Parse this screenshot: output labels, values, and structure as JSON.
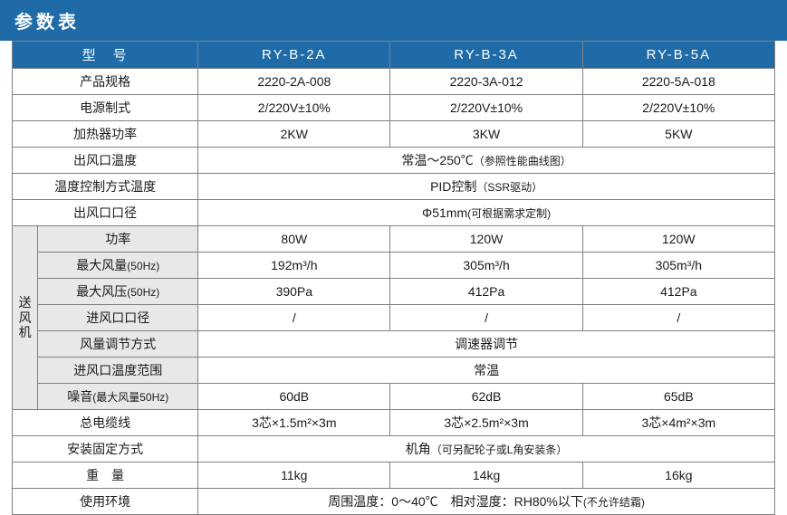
{
  "title": "参数表",
  "colors": {
    "header_bg": "#1e6ba8",
    "header_fg": "#ffffff",
    "border": "#808080",
    "row_white": "#ffffff",
    "row_gray": "#e8e8e8",
    "text": "#1a1a1a"
  },
  "header": {
    "model_label": "型　号",
    "models": [
      "RY-B-2A",
      "RY-B-3A",
      "RY-B-5A"
    ]
  },
  "rows": {
    "spec": {
      "label": "产品规格",
      "values": [
        "2220-2A-008",
        "2220-3A-012",
        "2220-5A-018"
      ]
    },
    "power_supply": {
      "label": "电源制式",
      "values": [
        "2/220V±10%",
        "2/220V±10%",
        "2/220V±10%"
      ]
    },
    "heater_power": {
      "label": "加热器功率",
      "values": [
        "2KW",
        "3KW",
        "5KW"
      ]
    },
    "outlet_temp": {
      "label": "出风口温度",
      "merged": "常温～250℃",
      "note": "（参照性能曲线图）"
    },
    "temp_control": {
      "label": "温度控制方式温度",
      "merged": "PID控制",
      "note": "（SSR驱动）"
    },
    "outlet_dia": {
      "label": "出风口口径",
      "merged": "Φ51mm",
      "note": "(可根据需求定制)"
    },
    "blower_group_label": "送风机",
    "blower": {
      "power": {
        "label": "功率",
        "values": [
          "80W",
          "120W",
          "120W"
        ]
      },
      "max_flow": {
        "label": "最大风量",
        "label_note": "(50Hz)",
        "values": [
          "192m³/h",
          "305m³/h",
          "305m³/h"
        ]
      },
      "max_pressure": {
        "label": "最大风压",
        "label_note": "(50Hz)",
        "values": [
          "390Pa",
          "412Pa",
          "412Pa"
        ]
      },
      "inlet_dia": {
        "label": "进风口口径",
        "values": [
          "/",
          "/",
          "/"
        ]
      },
      "flow_adjust": {
        "label": "风量调节方式",
        "merged": "调速器调节"
      },
      "inlet_temp_range": {
        "label": "进风口温度范围",
        "merged": "常温"
      },
      "noise": {
        "label": "噪音",
        "label_note": "(最大风量50Hz)",
        "values": [
          "60dB",
          "62dB",
          "65dB"
        ]
      }
    },
    "cable": {
      "label": "总电缆线",
      "values": [
        "3芯×1.5m²×3m",
        "3芯×2.5m²×3m",
        "3芯×4m²×3m"
      ]
    },
    "mounting": {
      "label": "安装固定方式",
      "merged": "机角",
      "note": "（可另配轮子或L角安装条）"
    },
    "weight": {
      "label": "重　量",
      "values": [
        "11kg",
        "14kg",
        "16kg"
      ]
    },
    "environment": {
      "label": "使用环境",
      "merged_a": "周围温度：0～40℃",
      "merged_b": "相对湿度：RH80%以下",
      "note": "(不允许结霜)"
    }
  }
}
